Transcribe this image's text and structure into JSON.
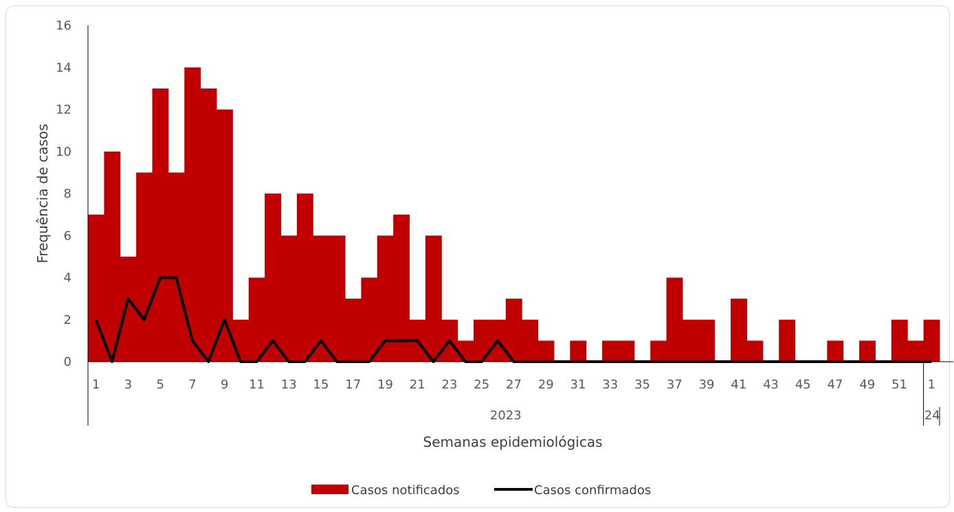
{
  "chart_data": {
    "type": "bar",
    "title": "",
    "xlabel": "Semanas epidemiológicas",
    "ylabel": "Frequência de casos",
    "ylim": [
      0,
      16
    ],
    "yticks": [
      "0",
      "2",
      "4",
      "6",
      "8",
      "10",
      "12",
      "14",
      "16"
    ],
    "categories": [
      "1",
      "2",
      "3",
      "4",
      "5",
      "6",
      "7",
      "8",
      "9",
      "10",
      "11",
      "12",
      "13",
      "14",
      "15",
      "16",
      "17",
      "18",
      "19",
      "20",
      "21",
      "22",
      "23",
      "24",
      "25",
      "26",
      "27",
      "28",
      "29",
      "30",
      "31",
      "32",
      "33",
      "34",
      "35",
      "36",
      "37",
      "38",
      "39",
      "40",
      "41",
      "42",
      "43",
      "44",
      "45",
      "46",
      "47",
      "48",
      "49",
      "50",
      "51",
      "52",
      "1"
    ],
    "groups": [
      {
        "label": "2023"
      },
      {
        "label": "24"
      }
    ],
    "series": [
      {
        "name": "Casos notificados",
        "type": "bar",
        "color": "#C00000",
        "values": [
          7,
          10,
          5,
          9,
          13,
          9,
          14,
          13,
          12,
          2,
          4,
          8,
          6,
          8,
          6,
          6,
          3,
          4,
          6,
          7,
          2,
          6,
          2,
          1,
          2,
          2,
          3,
          2,
          1,
          0,
          1,
          0,
          1,
          1,
          0,
          1,
          4,
          2,
          2,
          0,
          3,
          1,
          0,
          2,
          0,
          0,
          1,
          0,
          1,
          0,
          2,
          1,
          2
        ]
      },
      {
        "name": "Casos confirmados",
        "type": "line",
        "color": "#000000",
        "values": [
          2,
          0,
          3,
          2,
          4,
          4,
          1,
          0,
          2,
          0,
          0,
          1,
          0,
          0,
          1,
          0,
          0,
          0,
          1,
          1,
          1,
          0,
          1,
          0,
          0,
          1,
          0,
          0,
          0,
          0,
          0,
          0,
          0,
          0,
          0,
          0,
          0,
          0,
          0,
          0,
          0,
          0,
          0,
          0,
          0,
          0,
          0,
          0,
          0,
          0,
          0,
          0,
          0
        ]
      }
    ],
    "legend": "bottom",
    "grid": false
  }
}
